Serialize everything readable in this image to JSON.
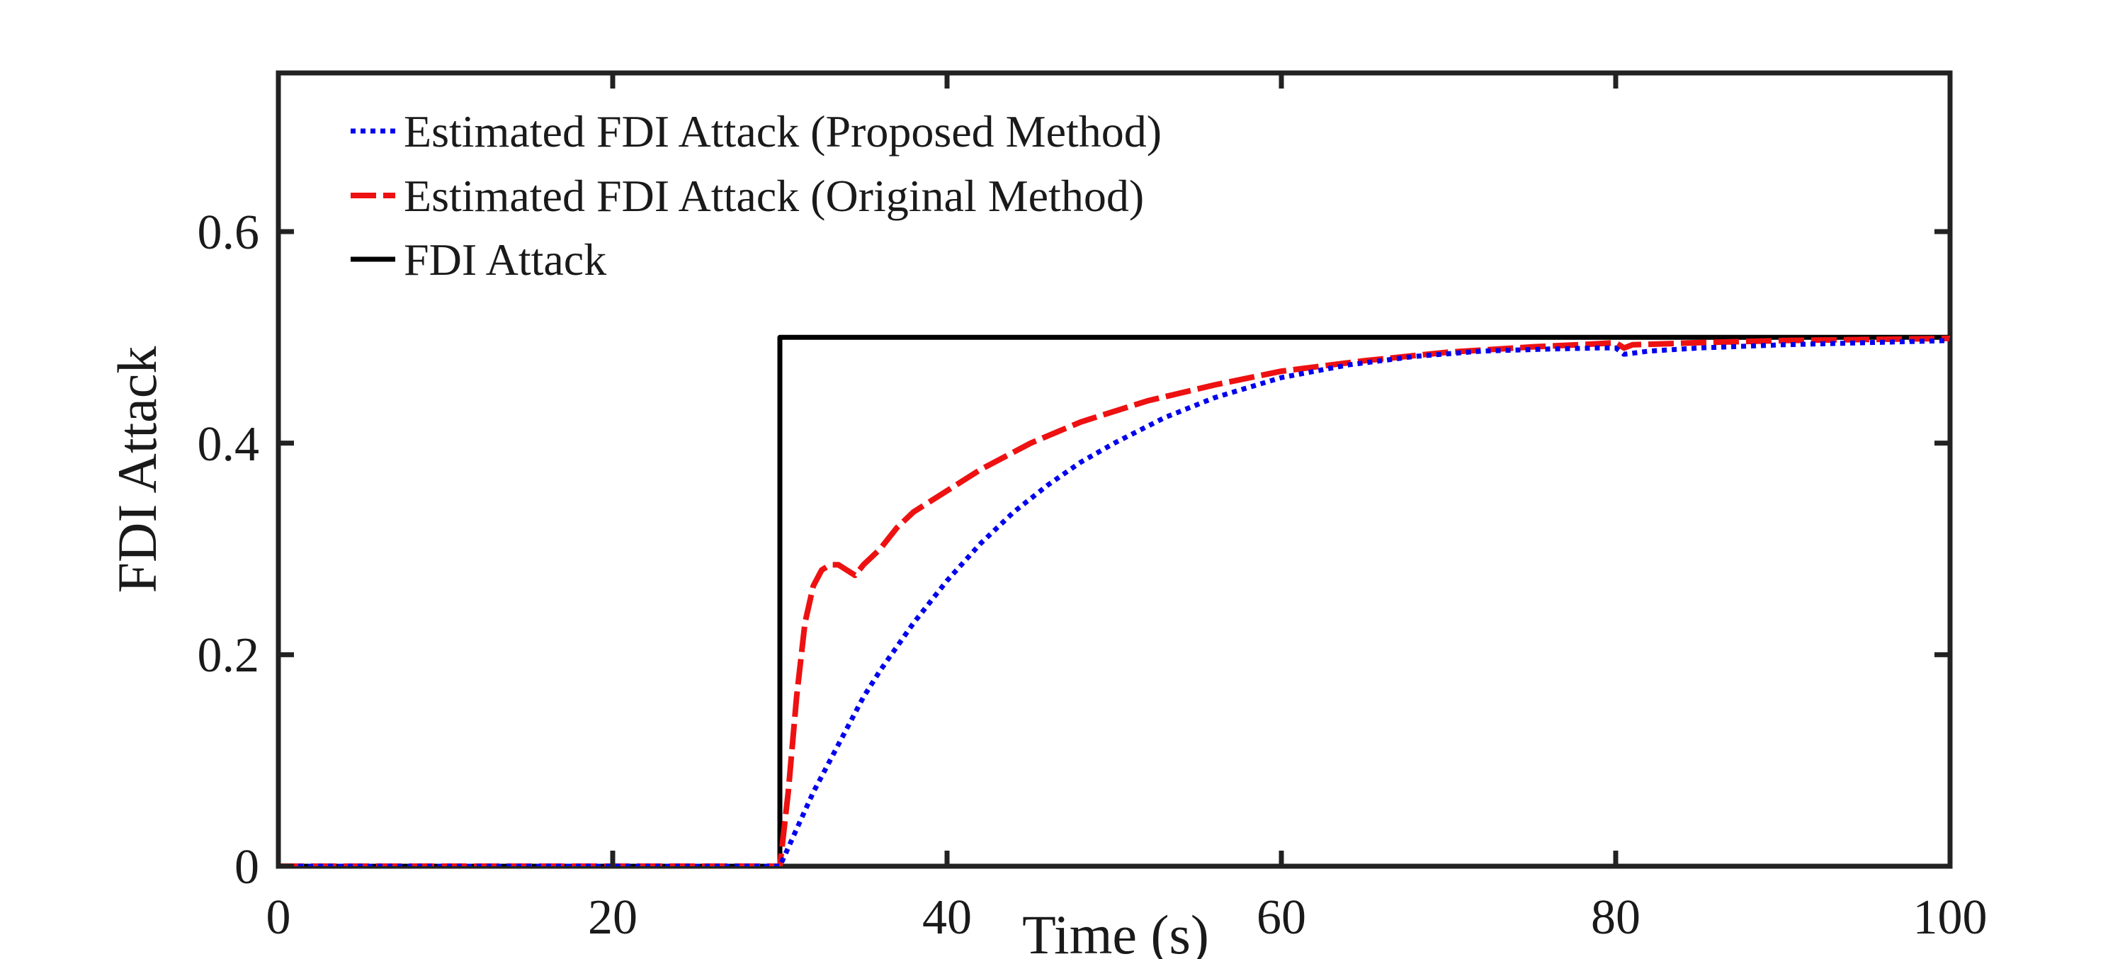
{
  "chart_data": {
    "type": "line",
    "title": "",
    "xlabel": "Time (s)",
    "ylabel": "FDI Attack",
    "xlim": [
      0,
      100
    ],
    "ylim": [
      0,
      0.75
    ],
    "xticks": [
      0,
      20,
      40,
      60,
      80,
      100
    ],
    "yticks": [
      0,
      0.2,
      0.4,
      0.6
    ],
    "xtick_labels": [
      "0",
      "20",
      "40",
      "60",
      "80",
      "100"
    ],
    "ytick_labels": [
      "0",
      "0.2",
      "0.4",
      "0.6"
    ],
    "grid": false,
    "legend_position": "top-left",
    "series": [
      {
        "name": "Estimated FDI Attack (Proposed Method)",
        "color": "#0000ee",
        "line_style": "dotted",
        "x": [
          0,
          30,
          31,
          32,
          33,
          34,
          35,
          36,
          38,
          40,
          42,
          44,
          46,
          48,
          50,
          53,
          56,
          60,
          64,
          68,
          72,
          76,
          79,
          80,
          80.5,
          81,
          82,
          85,
          90,
          95,
          100
        ],
        "y": [
          0,
          0,
          0.035,
          0.07,
          0.1,
          0.13,
          0.16,
          0.185,
          0.23,
          0.27,
          0.305,
          0.335,
          0.36,
          0.382,
          0.4,
          0.424,
          0.443,
          0.462,
          0.474,
          0.482,
          0.487,
          0.489,
          0.49,
          0.49,
          0.484,
          0.485,
          0.487,
          0.49,
          0.493,
          0.495,
          0.497
        ]
      },
      {
        "name": "Estimated FDI Attack (Original Method)",
        "color": "#ee1111",
        "line_style": "dashed",
        "x": [
          0,
          30,
          30.5,
          31,
          31.5,
          32,
          32.5,
          33,
          33.5,
          34,
          34.5,
          35,
          36,
          37,
          38,
          40,
          42,
          45,
          48,
          52,
          56,
          60,
          65,
          70,
          75,
          79,
          80,
          80.5,
          81,
          85,
          90,
          95,
          100
        ],
        "y": [
          0,
          0,
          0.07,
          0.16,
          0.23,
          0.265,
          0.28,
          0.285,
          0.285,
          0.28,
          0.275,
          0.285,
          0.3,
          0.32,
          0.335,
          0.355,
          0.375,
          0.4,
          0.42,
          0.44,
          0.455,
          0.468,
          0.478,
          0.486,
          0.491,
          0.494,
          0.495,
          0.49,
          0.493,
          0.495,
          0.497,
          0.498,
          0.499
        ]
      },
      {
        "name": "FDI Attack",
        "color": "#000000",
        "line_style": "solid",
        "x": [
          0,
          30,
          30,
          100
        ],
        "y": [
          0,
          0,
          0.5,
          0.5
        ]
      }
    ]
  }
}
